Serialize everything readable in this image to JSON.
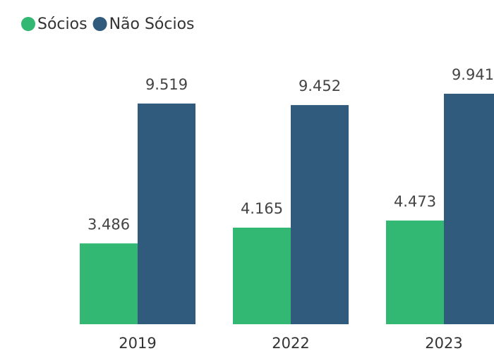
{
  "chart_data": {
    "type": "bar",
    "categories": [
      "2019",
      "2022",
      "2023"
    ],
    "series": [
      {
        "name": "Sócios",
        "color": "#33b873",
        "values": [
          3486,
          4165,
          4473
        ],
        "value_labels": [
          "3.486",
          "4.165",
          "4.473"
        ]
      },
      {
        "name": "Não Sócios",
        "color": "#315b7d",
        "values": [
          9519,
          9452,
          9941
        ],
        "value_labels": [
          "9.519",
          "9.452",
          "9.941"
        ]
      }
    ]
  }
}
